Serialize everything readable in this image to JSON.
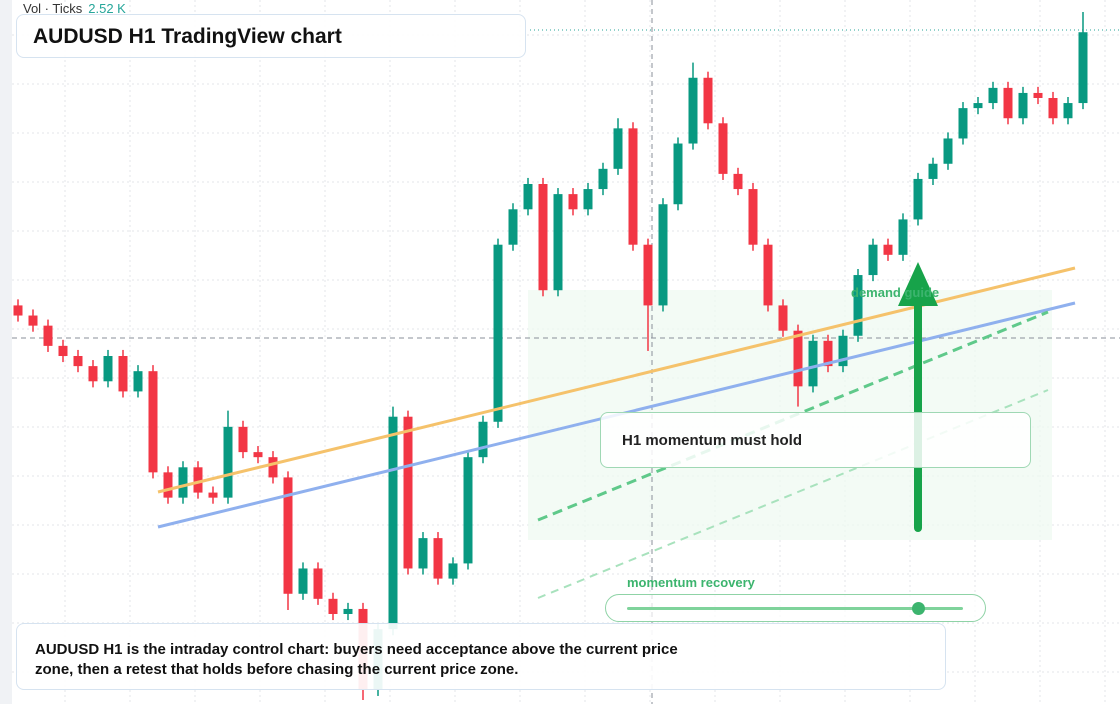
{
  "chart_data": {
    "type": "candlestick",
    "title": "AUDUSD H1 TradingView chart",
    "legend_label": "Vol · Ticks",
    "legend_value": "2.52 K",
    "up_color": "#089981",
    "down_color": "#f23645",
    "zone_label": "demand guide",
    "note": "H1 momentum must hold",
    "slider_label": "momentum recovery",
    "caption": "AUDUSD H1 is the intraday control chart: buyers need acceptance above the current price zone, then a retest that holds before chasing the current price zone.",
    "ohlc": [
      [
        400,
        406,
        384,
        390
      ],
      [
        390,
        396,
        374,
        380
      ],
      [
        380,
        386,
        354,
        360
      ],
      [
        360,
        366,
        344,
        350
      ],
      [
        350,
        356,
        334,
        340
      ],
      [
        340,
        346,
        319,
        325
      ],
      [
        325,
        356,
        319,
        350
      ],
      [
        350,
        356,
        309,
        315
      ],
      [
        315,
        341,
        309,
        335
      ],
      [
        335,
        341,
        229,
        235
      ],
      [
        235,
        241,
        204,
        210
      ],
      [
        210,
        246,
        204,
        240
      ],
      [
        240,
        246,
        209,
        215
      ],
      [
        215,
        221,
        204,
        210
      ],
      [
        210,
        296,
        204,
        280
      ],
      [
        280,
        286,
        249,
        255
      ],
      [
        255,
        261,
        244,
        250
      ],
      [
        250,
        256,
        224,
        230
      ],
      [
        230,
        236,
        99,
        115
      ],
      [
        115,
        146,
        109,
        140
      ],
      [
        140,
        146,
        104,
        110
      ],
      [
        110,
        116,
        89,
        95
      ],
      [
        95,
        106,
        89,
        100
      ],
      [
        100,
        106,
        10,
        20
      ],
      [
        20,
        86,
        14,
        80
      ],
      [
        80,
        300,
        74,
        290
      ],
      [
        290,
        296,
        134,
        140
      ],
      [
        140,
        176,
        134,
        170
      ],
      [
        170,
        176,
        124,
        130
      ],
      [
        130,
        151,
        124,
        145
      ],
      [
        145,
        256,
        139,
        250
      ],
      [
        250,
        291,
        244,
        285
      ],
      [
        285,
        466,
        279,
        460
      ],
      [
        460,
        501,
        454,
        495
      ],
      [
        495,
        526,
        489,
        520
      ],
      [
        520,
        526,
        409,
        415
      ],
      [
        415,
        516,
        409,
        510
      ],
      [
        510,
        516,
        489,
        495
      ],
      [
        495,
        521,
        489,
        515
      ],
      [
        515,
        541,
        509,
        535
      ],
      [
        535,
        585,
        529,
        575
      ],
      [
        575,
        581,
        454,
        460
      ],
      [
        460,
        466,
        355,
        400
      ],
      [
        400,
        506,
        394,
        500
      ],
      [
        500,
        566,
        494,
        560
      ],
      [
        560,
        640,
        554,
        625
      ],
      [
        625,
        631,
        574,
        580
      ],
      [
        580,
        586,
        524,
        530
      ],
      [
        530,
        536,
        509,
        515
      ],
      [
        515,
        521,
        454,
        460
      ],
      [
        460,
        466,
        394,
        400
      ],
      [
        400,
        406,
        369,
        375
      ],
      [
        375,
        381,
        300,
        320
      ],
      [
        320,
        371,
        314,
        365
      ],
      [
        365,
        371,
        334,
        340
      ],
      [
        340,
        376,
        334,
        370
      ],
      [
        370,
        436,
        364,
        430
      ],
      [
        430,
        466,
        424,
        460
      ],
      [
        460,
        466,
        444,
        450
      ],
      [
        450,
        491,
        444,
        485
      ],
      [
        485,
        531,
        479,
        525
      ],
      [
        525,
        546,
        519,
        540
      ],
      [
        540,
        571,
        534,
        565
      ],
      [
        565,
        601,
        559,
        595
      ],
      [
        595,
        606,
        589,
        600
      ],
      [
        600,
        621,
        594,
        615
      ],
      [
        615,
        621,
        579,
        585
      ],
      [
        585,
        616,
        579,
        610
      ],
      [
        610,
        616,
        599,
        605
      ],
      [
        605,
        611,
        579,
        585
      ],
      [
        585,
        606,
        579,
        600
      ],
      [
        600,
        690,
        594,
        670
      ]
    ]
  }
}
